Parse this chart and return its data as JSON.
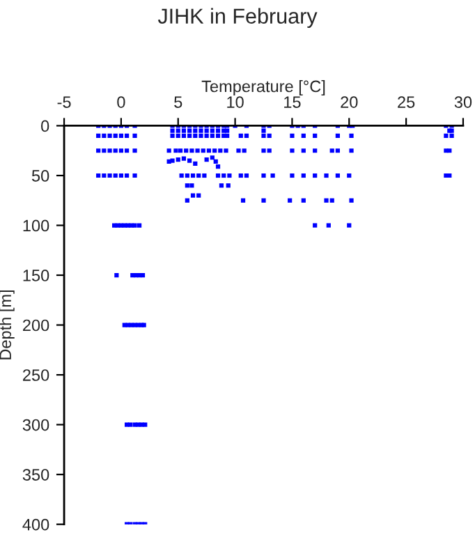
{
  "chart_data": {
    "type": "scatter",
    "title": "JIHK in February",
    "xlabel": "Temperature [°C]",
    "ylabel": "Depth [m]",
    "xlim": [
      -5,
      30
    ],
    "xticks": [
      -5,
      0,
      5,
      10,
      15,
      20,
      25,
      30
    ],
    "ylim": [
      400,
      0
    ],
    "yticks": [
      0,
      50,
      100,
      150,
      200,
      250,
      300,
      350,
      400
    ],
    "marker": "square",
    "grid": false,
    "series": [
      {
        "color": "#0000ff",
        "x": [
          -2,
          -1.5,
          -1,
          -0.5,
          0,
          0.5,
          1.2,
          4.5,
          5,
          5.5,
          6,
          6.5,
          7,
          7.5,
          8,
          8.5,
          9,
          9.3,
          10,
          11,
          12.5,
          13,
          15,
          15.5,
          16,
          17,
          19,
          20,
          20.3,
          28.5,
          29,
          4.5,
          5,
          5.5,
          6,
          6.5,
          7,
          7.5,
          8,
          8.5,
          9,
          9.3,
          12.5,
          28.8,
          29,
          -2,
          -1.5,
          -1,
          -0.5,
          0,
          0.5,
          1.2,
          4.5,
          5,
          5.5,
          6,
          6.5,
          7,
          7.5,
          8,
          8.5,
          9,
          9.3,
          10.5,
          11,
          12.5,
          13,
          15,
          16,
          17,
          19,
          20.2,
          28.5,
          29,
          -2,
          -1.5,
          -1,
          -0.5,
          0,
          0.5,
          1.2,
          4.2,
          4.8,
          5.2,
          5.7,
          6.2,
          6.7,
          7.2,
          7.7,
          8.2,
          8.7,
          9.2,
          10.3,
          10.8,
          12.5,
          13,
          15,
          16,
          17,
          18.5,
          19,
          20.2,
          28.5,
          28.8,
          4.2,
          4.5,
          5,
          5.5,
          6,
          6.5,
          7.5,
          8,
          8.3,
          8.5,
          -2,
          -1.5,
          -1,
          -0.5,
          0,
          0.5,
          1.2,
          5.3,
          5.8,
          6.3,
          6.8,
          7.3,
          8.5,
          9,
          9.5,
          10.5,
          11,
          12.5,
          13.3,
          15,
          16,
          17,
          18,
          19,
          20,
          28.5,
          28.8,
          5.8,
          6.2,
          8.8,
          9.4,
          6.3,
          6.8,
          5.8,
          10.7,
          12.5,
          14.8,
          16,
          18,
          18.5,
          20.2,
          -0.6,
          -0.3,
          0,
          0.3,
          0.6,
          0.9,
          1.2,
          1.6,
          17,
          18.2,
          20,
          -0.4,
          1,
          1.3,
          1.6,
          1.9,
          0.3,
          0.6,
          0.9,
          1.2,
          1.5,
          1.8,
          2,
          0.5,
          0.8,
          1.2,
          1.5,
          1.8,
          2.1,
          0.5,
          0.8,
          1.2,
          1.5,
          1.8,
          2.1
        ],
        "values": [
          0,
          0,
          0,
          0,
          0,
          0,
          0,
          0,
          0,
          0,
          0,
          0,
          0,
          0,
          0,
          0,
          0,
          0,
          0,
          0,
          0,
          0,
          0,
          0,
          0,
          0,
          0,
          0,
          0,
          0,
          0,
          5,
          5,
          5,
          5,
          5,
          5,
          5,
          5,
          5,
          5,
          5,
          5,
          5,
          5,
          10,
          10,
          10,
          10,
          10,
          10,
          10,
          10,
          10,
          10,
          10,
          10,
          10,
          10,
          10,
          10,
          10,
          10,
          10,
          10,
          10,
          10,
          10,
          10,
          10,
          10,
          10,
          10,
          10,
          25,
          25,
          25,
          25,
          25,
          25,
          25,
          25,
          25,
          25,
          25,
          25,
          25,
          25,
          25,
          25,
          25,
          25,
          25,
          25,
          25,
          25,
          25,
          25,
          25,
          25,
          25,
          25,
          25,
          25,
          36,
          35,
          34,
          33,
          35,
          38,
          34,
          32,
          36,
          41,
          50,
          50,
          50,
          50,
          50,
          50,
          50,
          50,
          50,
          50,
          50,
          50,
          50,
          50,
          50,
          50,
          50,
          50,
          50,
          50,
          50,
          50,
          50,
          50,
          50,
          50,
          50,
          60,
          60,
          60,
          60,
          70,
          70,
          75,
          75,
          75,
          75,
          75,
          75,
          75,
          75,
          100,
          100,
          100,
          100,
          100,
          100,
          100,
          100,
          100,
          100,
          100,
          150,
          150,
          150,
          150,
          150,
          200,
          200,
          200,
          200,
          200,
          200,
          200,
          300,
          300,
          300,
          300,
          300,
          300,
          400,
          400,
          400,
          400,
          400,
          400
        ]
      }
    ]
  }
}
